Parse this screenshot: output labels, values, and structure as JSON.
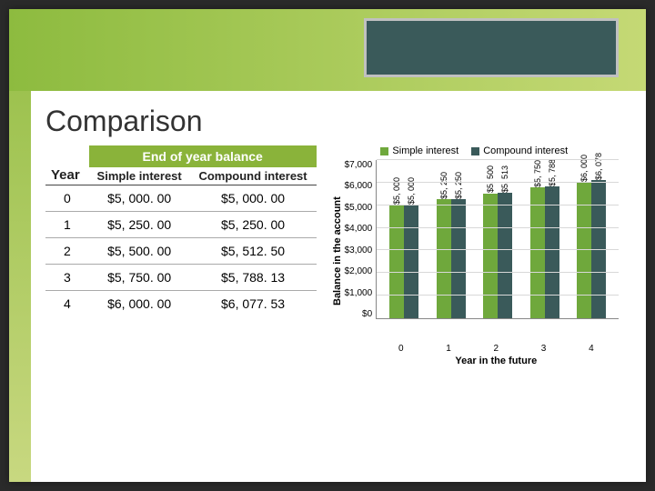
{
  "slide": {
    "title": "Comparison"
  },
  "table": {
    "header_balance": "End of year balance",
    "header_year": "Year",
    "header_simple": "Simple interest",
    "header_compound": "Compound interest",
    "rows": [
      {
        "year": "0",
        "simple": "$5, 000. 00",
        "compound": "$5, 000. 00"
      },
      {
        "year": "1",
        "simple": "$5, 250. 00",
        "compound": "$5, 250. 00"
      },
      {
        "year": "2",
        "simple": "$5, 500. 00",
        "compound": "$5, 512. 50"
      },
      {
        "year": "3",
        "simple": "$5, 750. 00",
        "compound": "$5, 788. 13"
      },
      {
        "year": "4",
        "simple": "$6, 000. 00",
        "compound": "$6, 077. 53"
      }
    ]
  },
  "chart": {
    "type": "bar",
    "legend_simple": "Simple interest",
    "legend_compound": "Compound interest",
    "color_simple": "#6fa83c",
    "color_compound": "#3a5a5a",
    "y_title": "Balance in the account",
    "x_title": "Year in the future",
    "y_ticks": [
      "$0",
      "$1,000",
      "$2,000",
      "$3,000",
      "$4,000",
      "$5,000",
      "$6,000",
      "$7,000"
    ],
    "y_max": 7000,
    "categories": [
      "0",
      "1",
      "2",
      "3",
      "4"
    ],
    "series": [
      {
        "simple": {
          "value": 5000,
          "label": "$5, 000"
        },
        "compound": {
          "value": 5000,
          "label": "$5, 000"
        }
      },
      {
        "simple": {
          "value": 5250,
          "label": "$5, 250"
        },
        "compound": {
          "value": 5250,
          "label": "$5, 250"
        }
      },
      {
        "simple": {
          "value": 5500,
          "label": "$5, 500"
        },
        "compound": {
          "value": 5513,
          "label": "$5, 513"
        }
      },
      {
        "simple": {
          "value": 5750,
          "label": "$5, 750"
        },
        "compound": {
          "value": 5788,
          "label": "$5, 788"
        }
      },
      {
        "simple": {
          "value": 6000,
          "label": "$6, 000"
        },
        "compound": {
          "value": 6078,
          "label": "$6, 078"
        }
      }
    ],
    "grid_color": "#d8d8d8",
    "background_color": "#ffffff",
    "label_fontsize": 9,
    "axis_fontsize": 10,
    "title_fontsize": 11
  },
  "colors": {
    "accent_gradient_start": "#8dbb3f",
    "accent_gradient_end": "#c5d975",
    "title_box_bg": "#3a5a5a",
    "title_box_border": "#c0c0c0"
  }
}
